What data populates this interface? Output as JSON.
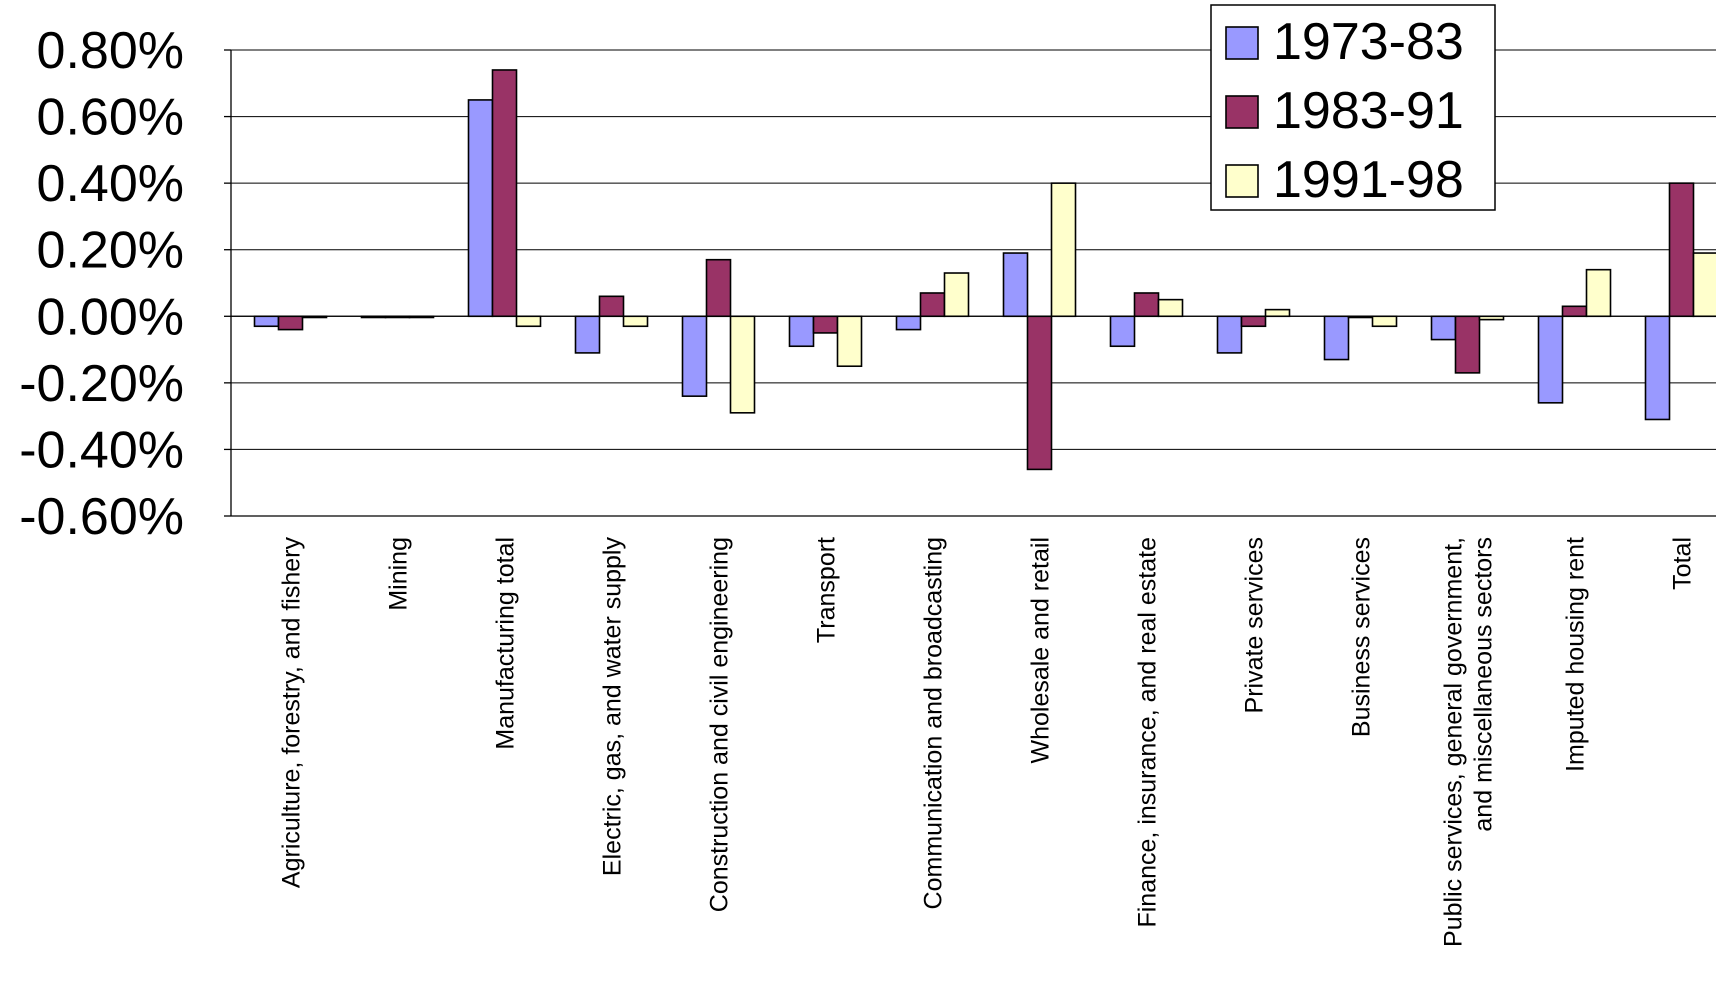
{
  "chart_data": {
    "type": "bar",
    "title": "",
    "xlabel": "",
    "ylabel": "",
    "ylim": [
      -0.6,
      0.8
    ],
    "y_ticks": [
      0.8,
      0.6,
      0.4,
      0.2,
      0.0,
      -0.2,
      -0.4,
      -0.6
    ],
    "y_tick_labels": [
      "0.80%",
      "0.60%",
      "0.40%",
      "0.20%",
      "0.00%",
      "-0.20%",
      "-0.40%",
      "-0.60%"
    ],
    "grid": true,
    "legend_position": "top-right",
    "categories": [
      [
        "Agriculture, forestry, and fishery"
      ],
      [
        "Mining"
      ],
      [
        "Manufacturing total"
      ],
      [
        "Electric, gas, and water supply"
      ],
      [
        "Construction and civil engineering"
      ],
      [
        "Transport"
      ],
      [
        "Communication and broadcasting"
      ],
      [
        "Wholesale and retail"
      ],
      [
        "Finance, insurance, and real estate"
      ],
      [
        "Private services"
      ],
      [
        "Business services"
      ],
      [
        "Public services, general government,",
        "and miscellaneous sectors"
      ],
      [
        "Imputed housing rent"
      ],
      [
        "Total"
      ]
    ],
    "series": [
      {
        "name": "1973-83",
        "color": "#9999ff",
        "values": [
          -0.03,
          0.0,
          0.65,
          -0.11,
          -0.24,
          -0.09,
          -0.04,
          0.19,
          -0.09,
          -0.11,
          -0.13,
          -0.07,
          -0.26,
          -0.31
        ]
      },
      {
        "name": "1983-91",
        "color": "#993366",
        "values": [
          -0.04,
          0.0,
          0.74,
          0.06,
          0.17,
          -0.05,
          0.07,
          -0.46,
          0.07,
          -0.03,
          0.0,
          -0.17,
          0.03,
          0.4
        ]
      },
      {
        "name": "1991-98",
        "color": "#ffffcc",
        "values": [
          0.0,
          0.0,
          -0.03,
          -0.03,
          -0.29,
          -0.15,
          0.13,
          0.4,
          0.05,
          0.02,
          -0.03,
          -0.01,
          0.14,
          0.19
        ]
      }
    ]
  }
}
